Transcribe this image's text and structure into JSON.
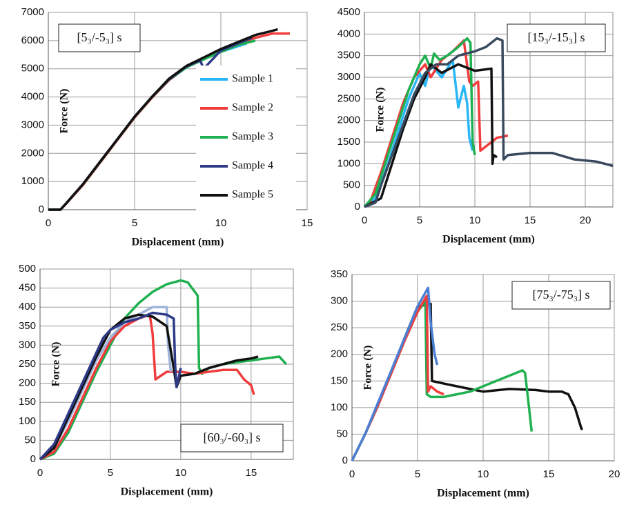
{
  "chart_data": [
    {
      "type": "line",
      "annotation": "[5₃/-5₃] s",
      "x_label": "Displacement (mm)",
      "y_label": "Force (N)",
      "xlim": [
        0,
        15
      ],
      "xticks": [
        0,
        5,
        10,
        15
      ],
      "ylim": [
        0,
        7000
      ],
      "yticks": [
        0,
        1000,
        2000,
        3000,
        4000,
        5000,
        6000,
        7000
      ],
      "grid": true,
      "legend": "right",
      "series": [
        {
          "name": "Sample 1",
          "color": "#29b6f6",
          "x": [
            0,
            0.7,
            1,
            2,
            3,
            4,
            5,
            6,
            7,
            8,
            9,
            10,
            11,
            11.5
          ],
          "values": [
            0,
            0,
            200,
            880,
            1680,
            2480,
            3280,
            3980,
            4600,
            5050,
            5350,
            5600,
            5800,
            5900
          ]
        },
        {
          "name": "Sample 2",
          "color": "#f03c3c",
          "x": [
            0,
            0.7,
            1,
            2,
            3,
            4,
            5,
            6,
            7,
            8,
            9,
            10,
            11,
            12,
            13,
            14
          ],
          "values": [
            0,
            0,
            190,
            870,
            1670,
            2470,
            3270,
            3970,
            4600,
            5060,
            5380,
            5650,
            5900,
            6100,
            6250,
            6250
          ]
        },
        {
          "name": "Sample 3",
          "color": "#1fb050",
          "x": [
            0,
            0.7,
            1,
            2,
            3,
            4,
            5,
            6,
            7,
            8,
            9,
            10,
            11,
            12
          ],
          "values": [
            0,
            0,
            200,
            890,
            1690,
            2490,
            3290,
            3990,
            4620,
            5050,
            5330,
            5600,
            5850,
            6000
          ]
        },
        {
          "name": "Sample 4",
          "color": "#2e3a87",
          "x": [
            0,
            0.7,
            1,
            2,
            3,
            4,
            5,
            6,
            7,
            8,
            8.8,
            9,
            10,
            11,
            11.8
          ],
          "values": [
            0,
            0,
            200,
            900,
            1700,
            2500,
            3300,
            4000,
            4630,
            5080,
            5300,
            5000,
            5650,
            5900,
            6100
          ]
        },
        {
          "name": "Sample 5",
          "color": "#111111",
          "x": [
            0,
            0.7,
            1,
            2,
            3,
            4,
            5,
            6,
            7,
            8,
            9,
            10,
            11,
            12,
            13,
            13.3
          ],
          "values": [
            0,
            0,
            200,
            900,
            1700,
            2500,
            3300,
            4000,
            4650,
            5100,
            5400,
            5700,
            5950,
            6200,
            6350,
            6400
          ]
        }
      ]
    },
    {
      "type": "line",
      "annotation": "[15₃/-15₃] s",
      "x_label": "Displacement (mm)",
      "y_label": "Force (N)",
      "xlim": [
        0,
        22.5
      ],
      "xticks": [
        0,
        5,
        10,
        15,
        20
      ],
      "ylim": [
        0,
        4500
      ],
      "yticks": [
        0,
        500,
        1000,
        1500,
        2000,
        2500,
        3000,
        3500,
        4000,
        4500
      ],
      "grid": true,
      "series": [
        {
          "color": "#29b6f6",
          "x": [
            0,
            1,
            2,
            3,
            4,
            5,
            5.5,
            6,
            7,
            8,
            8.5,
            9,
            9.3,
            9.5,
            9.8
          ],
          "values": [
            0,
            200,
            900,
            1700,
            2500,
            3100,
            2800,
            3300,
            3000,
            3400,
            2300,
            2800,
            2400,
            1600,
            1300
          ]
        },
        {
          "color": "#f03c3c",
          "x": [
            0,
            0.5,
            1.5,
            2.5,
            3.5,
            4.5,
            5.5,
            6,
            7,
            8,
            9,
            9.5,
            9.8,
            10.3,
            10.5,
            12,
            13
          ],
          "values": [
            0,
            100,
            800,
            1600,
            2400,
            3000,
            3300,
            3000,
            3400,
            3600,
            3850,
            2900,
            2800,
            2900,
            1300,
            1600,
            1650
          ]
        },
        {
          "color": "#1fb050",
          "x": [
            0,
            1,
            2,
            3,
            4,
            5,
            5.5,
            6,
            6.3,
            6.8,
            7.5,
            8.5,
            9.3,
            9.6,
            9.8,
            10
          ],
          "values": [
            0,
            300,
            1100,
            1900,
            2700,
            3300,
            3500,
            3200,
            3550,
            3400,
            3500,
            3700,
            3900,
            3800,
            1500,
            1200
          ]
        },
        {
          "color": "#111111",
          "x": [
            0,
            1.5,
            2.5,
            3.5,
            4.5,
            5.5,
            6,
            7,
            8.5,
            10,
            11.5,
            11.6,
            11.7,
            12
          ],
          "values": [
            0,
            200,
            1000,
            1800,
            2500,
            3000,
            3300,
            3100,
            3300,
            3150,
            3200,
            1000,
            1200,
            1150
          ]
        },
        {
          "color": "#3a4a5e",
          "x": [
            0,
            1,
            1.5,
            2.5,
            3.5,
            4.5,
            5.5,
            6.5,
            7.5,
            8.5,
            10,
            11,
            12,
            12.5,
            12.6,
            13,
            15,
            17,
            19,
            21,
            22.5
          ],
          "values": [
            0,
            100,
            500,
            1200,
            1900,
            2600,
            3100,
            3300,
            3300,
            3500,
            3600,
            3700,
            3900,
            3850,
            1100,
            1200,
            1250,
            1250,
            1100,
            1050,
            950
          ]
        }
      ]
    },
    {
      "type": "line",
      "annotation": "[60₃/-60₃] s",
      "x_label": "Displacement (mm)",
      "y_label": "Force (N)",
      "xlim": [
        0,
        18
      ],
      "xticks": [
        0,
        5,
        10,
        15
      ],
      "ylim": [
        0,
        500
      ],
      "yticks": [
        0,
        50,
        100,
        150,
        200,
        250,
        300,
        350,
        400,
        450,
        500
      ],
      "grid": true,
      "series": [
        {
          "color": "#1fb050",
          "x": [
            0,
            1,
            2,
            3,
            4,
            5,
            6,
            7,
            8,
            9,
            10,
            10.5,
            11,
            11.2,
            11.3,
            11.5,
            12,
            13,
            14,
            15,
            16,
            17,
            17.5
          ],
          "values": [
            0,
            15,
            70,
            150,
            230,
            300,
            370,
            410,
            440,
            460,
            470,
            465,
            440,
            430,
            240,
            225,
            240,
            250,
            255,
            260,
            265,
            270,
            250
          ]
        },
        {
          "color": "#f03c3c",
          "x": [
            0,
            1,
            2,
            3,
            4,
            5,
            6,
            7,
            7.8,
            8,
            8.2,
            9,
            10,
            11,
            12,
            13,
            14,
            14.5,
            15,
            15.2
          ],
          "values": [
            0,
            20,
            80,
            160,
            240,
            310,
            350,
            370,
            380,
            330,
            210,
            230,
            230,
            225,
            230,
            235,
            235,
            210,
            195,
            170
          ]
        },
        {
          "color": "#9fb3d9",
          "x": [
            0,
            1,
            2,
            3,
            4,
            5,
            6,
            7,
            8,
            9,
            9.1,
            9.3
          ],
          "values": [
            0,
            30,
            100,
            180,
            260,
            320,
            360,
            380,
            400,
            400,
            300,
            230
          ]
        },
        {
          "color": "#111111",
          "x": [
            0,
            1,
            2,
            3,
            4,
            5,
            6,
            7,
            8,
            9,
            9.5,
            9.7,
            10,
            11,
            12,
            13,
            14,
            15,
            15.5
          ],
          "values": [
            0,
            30,
            110,
            190,
            270,
            340,
            370,
            380,
            375,
            350,
            240,
            190,
            220,
            225,
            240,
            250,
            260,
            265,
            270
          ]
        },
        {
          "color": "#2e3a87",
          "x": [
            0,
            1,
            2,
            3,
            4,
            4.5,
            5,
            6,
            7,
            8,
            9,
            9.5,
            9.6,
            9.7,
            10
          ],
          "values": [
            0,
            40,
            120,
            200,
            280,
            320,
            340,
            360,
            370,
            385,
            380,
            370,
            250,
            190,
            240
          ]
        }
      ]
    },
    {
      "type": "line",
      "annotation": "[75₃/-75₃] s",
      "x_label": "Displacement (mm)",
      "y_label": "Force (N)",
      "xlim": [
        0,
        20
      ],
      "xticks": [
        0,
        5,
        10,
        15,
        20
      ],
      "ylim": [
        0,
        350
      ],
      "yticks": [
        0,
        50,
        100,
        150,
        200,
        250,
        300,
        350
      ],
      "grid": true,
      "series": [
        {
          "color": "#111111",
          "x": [
            0,
            1,
            2,
            3,
            4,
            5,
            6,
            6.1,
            7,
            8,
            9,
            10,
            12,
            14,
            15,
            16,
            16.5,
            17,
            17.5,
            17.6
          ],
          "values": [
            0,
            50,
            105,
            165,
            230,
            290,
            295,
            150,
            145,
            140,
            135,
            130,
            135,
            133,
            130,
            130,
            125,
            100,
            60,
            60
          ]
        },
        {
          "color": "#1fb050",
          "x": [
            0,
            1,
            2,
            3,
            4,
            5,
            5.6,
            5.7,
            6,
            7,
            8,
            9,
            10,
            11,
            12,
            13,
            13.2,
            13.5,
            13.7
          ],
          "values": [
            0,
            50,
            105,
            165,
            225,
            280,
            300,
            125,
            120,
            120,
            125,
            130,
            140,
            150,
            160,
            170,
            165,
            100,
            55
          ]
        },
        {
          "color": "#f03c3c",
          "x": [
            0,
            1,
            2,
            3,
            4,
            5,
            5.7,
            5.8,
            6,
            6.5,
            7
          ],
          "values": [
            0,
            50,
            105,
            165,
            225,
            280,
            310,
            130,
            140,
            130,
            125
          ]
        },
        {
          "color": "#4a7fd4",
          "x": [
            0,
            1,
            2,
            3,
            4,
            5,
            5.8,
            6,
            6.3,
            6.5
          ],
          "values": [
            0,
            50,
            110,
            170,
            230,
            290,
            325,
            260,
            200,
            180
          ]
        }
      ]
    }
  ]
}
